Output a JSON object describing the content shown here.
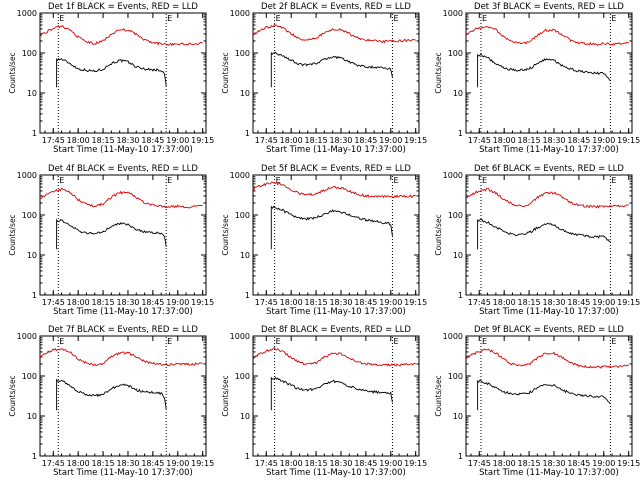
{
  "figure": {
    "colors": {
      "events": "#000000",
      "lld": "#dd0000",
      "axes": "#000000"
    },
    "ylabel": "Counts/sec",
    "xlabel": "Start Time (11-May-10 17:37:00)",
    "marker_label": "E",
    "y_tick_labels": [
      "1",
      "10",
      "100",
      "1000"
    ],
    "x_tick_labels": [
      "17:45",
      "18:00",
      "18:15",
      "18:30",
      "18:45",
      "19:00",
      "19:15"
    ]
  },
  "chart_data": [
    {
      "type": "line",
      "title": "Det 1f BLACK = Events, RED = LLD",
      "xlabel": "Start Time (11-May-10 17:37:00)",
      "ylabel": "Counts/sec",
      "yscale": "log",
      "ylim": [
        1,
        1000
      ],
      "xlim": [
        "17:37",
        "19:17"
      ],
      "markers": [
        "17:48",
        "18:53"
      ],
      "series": [
        {
          "name": "Events",
          "color": "#000000",
          "x": [
            "17:47",
            "17:50",
            "17:55",
            "18:00",
            "18:05",
            "18:10",
            "18:15",
            "18:20",
            "18:25",
            "18:30",
            "18:35",
            "18:40",
            "18:45",
            "18:50",
            "18:52",
            "18:53"
          ],
          "values": [
            70,
            70,
            55,
            40,
            37,
            35,
            40,
            55,
            65,
            60,
            45,
            40,
            38,
            37,
            30,
            15
          ]
        },
        {
          "name": "LLD",
          "color": "#dd0000",
          "x": [
            "17:37",
            "17:45",
            "17:50",
            "17:55",
            "18:00",
            "18:05",
            "18:10",
            "18:15",
            "18:20",
            "18:25",
            "18:30",
            "18:35",
            "18:40",
            "18:45",
            "18:50",
            "18:55",
            "19:00",
            "19:05",
            "19:10",
            "19:15"
          ],
          "values": [
            280,
            410,
            470,
            380,
            250,
            190,
            170,
            200,
            300,
            380,
            380,
            290,
            210,
            180,
            170,
            165,
            170,
            165,
            170,
            180
          ]
        }
      ]
    },
    {
      "type": "line",
      "title": "Det 2f BLACK = Events, RED = LLD",
      "xlabel": "Start Time (11-May-10 17:37:00)",
      "ylabel": "Counts/sec",
      "yscale": "log",
      "ylim": [
        1,
        1000
      ],
      "xlim": [
        "17:37",
        "19:17"
      ],
      "markers": [
        "17:50",
        "19:01"
      ],
      "series": [
        {
          "name": "Events",
          "color": "#000000",
          "x": [
            "17:48",
            "17:50",
            "17:55",
            "18:00",
            "18:05",
            "18:10",
            "18:15",
            "18:20",
            "18:25",
            "18:30",
            "18:35",
            "18:40",
            "18:45",
            "18:50",
            "18:55",
            "19:00",
            "19:01"
          ],
          "values": [
            100,
            100,
            85,
            65,
            52,
            50,
            55,
            70,
            80,
            75,
            60,
            50,
            45,
            44,
            42,
            40,
            25
          ]
        },
        {
          "name": "LLD",
          "color": "#dd0000",
          "x": [
            "17:37",
            "17:45",
            "17:50",
            "17:55",
            "18:00",
            "18:05",
            "18:10",
            "18:15",
            "18:20",
            "18:25",
            "18:30",
            "18:35",
            "18:40",
            "18:45",
            "18:50",
            "18:55",
            "19:00",
            "19:05",
            "19:10",
            "19:15"
          ],
          "values": [
            300,
            430,
            500,
            430,
            300,
            230,
            210,
            230,
            320,
            390,
            380,
            300,
            240,
            210,
            200,
            195,
            200,
            200,
            205,
            210
          ]
        }
      ]
    },
    {
      "type": "line",
      "title": "Det 3f BLACK = Events, RED = LLD",
      "xlabel": "Start Time (11-May-10 17:37:00)",
      "ylabel": "Counts/sec",
      "yscale": "log",
      "ylim": [
        1,
        1000
      ],
      "xlim": [
        "17:37",
        "19:17"
      ],
      "markers": [
        "17:46",
        "19:04"
      ],
      "series": [
        {
          "name": "Events",
          "color": "#000000",
          "x": [
            "17:44",
            "17:46",
            "17:50",
            "17:55",
            "18:00",
            "18:05",
            "18:10",
            "18:15",
            "18:20",
            "18:25",
            "18:30",
            "18:35",
            "18:40",
            "18:45",
            "18:50",
            "18:55",
            "19:00",
            "19:04"
          ],
          "values": [
            90,
            90,
            75,
            55,
            42,
            38,
            37,
            40,
            55,
            70,
            65,
            48,
            40,
            35,
            33,
            32,
            30,
            20
          ]
        },
        {
          "name": "LLD",
          "color": "#dd0000",
          "x": [
            "17:37",
            "17:45",
            "17:50",
            "17:55",
            "18:00",
            "18:05",
            "18:10",
            "18:15",
            "18:20",
            "18:25",
            "18:30",
            "18:35",
            "18:40",
            "18:45",
            "18:50",
            "18:55",
            "19:00",
            "19:05",
            "19:10",
            "19:15"
          ],
          "values": [
            300,
            430,
            460,
            380,
            250,
            190,
            170,
            190,
            280,
            370,
            380,
            290,
            210,
            180,
            170,
            165,
            170,
            168,
            172,
            180
          ]
        }
      ]
    },
    {
      "type": "line",
      "title": "Det 4f BLACK = Events, RED = LLD",
      "xlabel": "Start Time (11-May-10 17:37:00)",
      "ylabel": "Counts/sec",
      "yscale": "log",
      "ylim": [
        1,
        1000
      ],
      "xlim": [
        "17:37",
        "19:17"
      ],
      "markers": [
        "17:48",
        "18:53"
      ],
      "series": [
        {
          "name": "Events",
          "color": "#000000",
          "x": [
            "17:47",
            "17:50",
            "17:55",
            "18:00",
            "18:05",
            "18:10",
            "18:15",
            "18:20",
            "18:25",
            "18:30",
            "18:35",
            "18:40",
            "18:45",
            "18:50",
            "18:52",
            "18:53"
          ],
          "values": [
            75,
            72,
            55,
            40,
            36,
            34,
            38,
            52,
            62,
            58,
            44,
            38,
            36,
            35,
            30,
            16
          ]
        },
        {
          "name": "LLD",
          "color": "#dd0000",
          "x": [
            "17:37",
            "17:45",
            "17:50",
            "17:55",
            "18:00",
            "18:05",
            "18:10",
            "18:15",
            "18:20",
            "18:25",
            "18:30",
            "18:35",
            "18:40",
            "18:45",
            "18:50",
            "18:55",
            "19:00",
            "19:05",
            "19:10",
            "19:15"
          ],
          "values": [
            270,
            390,
            440,
            360,
            240,
            185,
            165,
            190,
            280,
            360,
            360,
            280,
            205,
            175,
            165,
            160,
            165,
            160,
            165,
            170
          ]
        }
      ]
    },
    {
      "type": "line",
      "title": "Det 5f BLACK = Events, RED = LLD",
      "xlabel": "Start Time (11-May-10 17:37:00)",
      "ylabel": "Counts/sec",
      "yscale": "log",
      "ylim": [
        1,
        1000
      ],
      "xlim": [
        "17:37",
        "19:17"
      ],
      "markers": [
        "17:50",
        "19:01"
      ],
      "series": [
        {
          "name": "Events",
          "color": "#000000",
          "x": [
            "17:48",
            "17:50",
            "17:55",
            "18:00",
            "18:05",
            "18:10",
            "18:15",
            "18:20",
            "18:25",
            "18:30",
            "18:35",
            "18:40",
            "18:45",
            "18:50",
            "18:55",
            "19:00",
            "19:01"
          ],
          "values": [
            160,
            155,
            130,
            100,
            85,
            80,
            85,
            105,
            125,
            120,
            100,
            85,
            75,
            70,
            65,
            60,
            30
          ]
        },
        {
          "name": "LLD",
          "color": "#dd0000",
          "x": [
            "17:37",
            "17:45",
            "17:50",
            "17:55",
            "18:00",
            "18:05",
            "18:10",
            "18:15",
            "18:20",
            "18:25",
            "18:30",
            "18:35",
            "18:40",
            "18:45",
            "18:50",
            "18:55",
            "19:00",
            "19:05",
            "19:10",
            "19:15"
          ],
          "values": [
            450,
            600,
            640,
            560,
            420,
            340,
            320,
            340,
            420,
            490,
            480,
            400,
            330,
            300,
            290,
            285,
            290,
            290,
            295,
            300
          ]
        }
      ]
    },
    {
      "type": "line",
      "title": "Det 6f BLACK = Events, RED = LLD",
      "xlabel": "Start Time (11-May-10 17:37:00)",
      "ylabel": "Counts/sec",
      "yscale": "log",
      "ylim": [
        1,
        1000
      ],
      "xlim": [
        "17:37",
        "19:17"
      ],
      "markers": [
        "17:46",
        "19:04"
      ],
      "series": [
        {
          "name": "Events",
          "color": "#000000",
          "x": [
            "17:44",
            "17:46",
            "17:50",
            "17:55",
            "18:00",
            "18:05",
            "18:10",
            "18:15",
            "18:20",
            "18:25",
            "18:30",
            "18:35",
            "18:40",
            "18:45",
            "18:50",
            "18:55",
            "19:00",
            "19:04"
          ],
          "values": [
            75,
            75,
            65,
            50,
            38,
            33,
            32,
            36,
            48,
            60,
            56,
            42,
            35,
            32,
            30,
            29,
            28,
            22
          ]
        },
        {
          "name": "LLD",
          "color": "#dd0000",
          "x": [
            "17:37",
            "17:45",
            "17:50",
            "17:55",
            "18:00",
            "18:05",
            "18:10",
            "18:15",
            "18:20",
            "18:25",
            "18:30",
            "18:35",
            "18:40",
            "18:45",
            "18:50",
            "18:55",
            "19:00",
            "19:05",
            "19:10",
            "19:15"
          ],
          "values": [
            280,
            400,
            440,
            360,
            240,
            185,
            165,
            185,
            270,
            350,
            360,
            280,
            205,
            175,
            165,
            160,
            165,
            163,
            167,
            175
          ]
        }
      ]
    },
    {
      "type": "line",
      "title": "Det 7f BLACK = Events, RED = LLD",
      "xlabel": "Start Time (11-May-10 17:37:00)",
      "ylabel": "Counts/sec",
      "yscale": "log",
      "ylim": [
        1,
        1000
      ],
      "xlim": [
        "17:37",
        "19:17"
      ],
      "markers": [
        "17:48",
        "18:53"
      ],
      "series": [
        {
          "name": "Events",
          "color": "#000000",
          "x": [
            "17:47",
            "17:50",
            "17:55",
            "18:00",
            "18:05",
            "18:10",
            "18:15",
            "18:20",
            "18:25",
            "18:30",
            "18:35",
            "18:40",
            "18:45",
            "18:50",
            "18:52",
            "18:53"
          ],
          "values": [
            80,
            75,
            58,
            40,
            35,
            32,
            35,
            48,
            60,
            58,
            45,
            40,
            38,
            37,
            30,
            15
          ]
        },
        {
          "name": "LLD",
          "color": "#dd0000",
          "x": [
            "17:37",
            "17:45",
            "17:50",
            "17:55",
            "18:00",
            "18:05",
            "18:10",
            "18:15",
            "18:20",
            "18:25",
            "18:30",
            "18:35",
            "18:40",
            "18:45",
            "18:50",
            "18:55",
            "19:00",
            "19:05",
            "19:10",
            "19:15"
          ],
          "values": [
            320,
            440,
            480,
            400,
            270,
            210,
            190,
            210,
            300,
            380,
            380,
            300,
            230,
            205,
            195,
            190,
            195,
            195,
            200,
            205
          ]
        }
      ]
    },
    {
      "type": "line",
      "title": "Det 8f BLACK = Events, RED = LLD",
      "xlabel": "Start Time (11-May-10 17:37:00)",
      "ylabel": "Counts/sec",
      "yscale": "log",
      "ylim": [
        1,
        1000
      ],
      "xlim": [
        "17:37",
        "19:17"
      ],
      "markers": [
        "17:50",
        "19:01"
      ],
      "series": [
        {
          "name": "Events",
          "color": "#000000",
          "x": [
            "17:48",
            "17:50",
            "17:55",
            "18:00",
            "18:05",
            "18:10",
            "18:15",
            "18:20",
            "18:25",
            "18:30",
            "18:35",
            "18:40",
            "18:45",
            "18:50",
            "18:55",
            "19:00",
            "19:01"
          ],
          "values": [
            90,
            88,
            75,
            58,
            47,
            44,
            48,
            62,
            74,
            70,
            56,
            47,
            42,
            40,
            38,
            37,
            22
          ]
        },
        {
          "name": "LLD",
          "color": "#dd0000",
          "x": [
            "17:37",
            "17:45",
            "17:50",
            "17:55",
            "18:00",
            "18:05",
            "18:10",
            "18:15",
            "18:20",
            "18:25",
            "18:30",
            "18:35",
            "18:40",
            "18:45",
            "18:50",
            "18:55",
            "19:00",
            "19:05",
            "19:10",
            "19:15"
          ],
          "values": [
            290,
            420,
            480,
            410,
            285,
            215,
            195,
            215,
            300,
            370,
            365,
            290,
            225,
            200,
            190,
            185,
            190,
            190,
            195,
            200
          ]
        }
      ]
    },
    {
      "type": "line",
      "title": "Det 9f BLACK = Events, RED = LLD",
      "xlabel": "Start Time (11-May-10 17:37:00)",
      "ylabel": "Counts/sec",
      "yscale": "log",
      "ylim": [
        1,
        1000
      ],
      "xlim": [
        "17:37",
        "19:17"
      ],
      "markers": [
        "17:46",
        "19:04"
      ],
      "series": [
        {
          "name": "Events",
          "color": "#000000",
          "x": [
            "17:44",
            "17:46",
            "17:50",
            "17:55",
            "18:00",
            "18:05",
            "18:10",
            "18:15",
            "18:20",
            "18:25",
            "18:30",
            "18:35",
            "18:40",
            "18:45",
            "18:50",
            "18:55",
            "19:00",
            "19:04"
          ],
          "values": [
            75,
            75,
            65,
            50,
            40,
            36,
            35,
            38,
            50,
            62,
            58,
            44,
            37,
            34,
            32,
            31,
            30,
            20
          ]
        },
        {
          "name": "LLD",
          "color": "#dd0000",
          "x": [
            "17:37",
            "17:45",
            "17:50",
            "17:55",
            "18:00",
            "18:05",
            "18:10",
            "18:15",
            "18:20",
            "18:25",
            "18:30",
            "18:35",
            "18:40",
            "18:45",
            "18:50",
            "18:55",
            "19:00",
            "19:05",
            "19:10",
            "19:15"
          ],
          "values": [
            290,
            410,
            460,
            380,
            255,
            195,
            175,
            195,
            285,
            365,
            370,
            285,
            210,
            180,
            170,
            165,
            170,
            168,
            172,
            180
          ]
        }
      ]
    }
  ]
}
